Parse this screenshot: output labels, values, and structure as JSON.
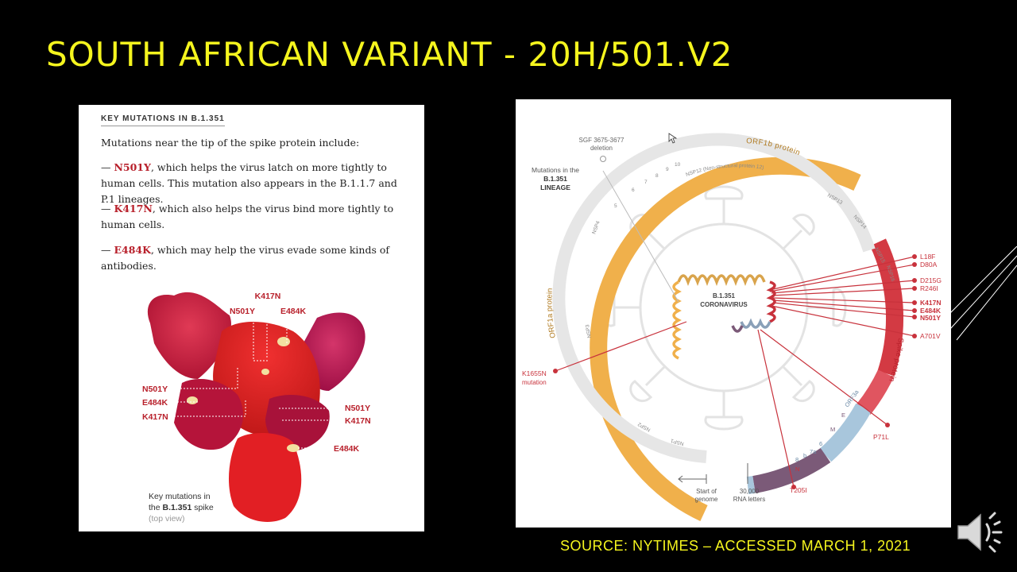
{
  "slide": {
    "title": "SOUTH AFRICAN VARIANT - 20H/501.V2",
    "source": "SOURCE:  NYTIMES – ACCESSED  MARCH 1, 2021"
  },
  "left_panel": {
    "heading": "KEY MUTATIONS IN B.1.351",
    "intro": "Mutations near the tip of the spike protein include:",
    "mutations": [
      {
        "name": "N501Y",
        "text": ", which helps the virus latch on more tightly to human cells. This mutation also appears in the B.1.1.7 and P.1 lineages."
      },
      {
        "name": "K417N",
        "text": ", which also helps the virus bind more tightly to human cells."
      },
      {
        "name": "E484K",
        "text": ", which may help the virus evade some kinds of antibodies."
      }
    ],
    "dash": "— ",
    "spike_labels": {
      "top_k417n": "K417N",
      "top_n501y": "N501Y",
      "top_e484k": "E484K",
      "left_n501y": "N501Y",
      "left_e484k": "E484K",
      "left_k417n": "K417N",
      "right_n501y": "N501Y",
      "right_k417n": "K417N",
      "bottom_e484k": "E484K"
    },
    "caption": {
      "line1": "Key mutations in",
      "line2_prefix": "the ",
      "line2_bold": "B.1.351",
      "line2_suffix": " spike",
      "line3": "(top view)"
    }
  },
  "right_panel": {
    "center_line1": "B.1.351",
    "center_line2": "CORONAVIRUS",
    "orf1b": "ORF1b protein",
    "orf1a": "ORF1a protein",
    "spike": "Spike protein",
    "sgf_line1": "SGF 3675-3677",
    "sgf_line2": "deletion",
    "lineage_line1": "Mutations in the",
    "lineage_line2": "B.1.351",
    "lineage_line3": "LINEAGE",
    "nsp12": "NSP12 (Non-structural protein 12)",
    "nsp13": "NSP13",
    "nsp14": "NSP14",
    "nsp15": "NSP15",
    "nsp16": "NSP16",
    "nsp4": "NSP4",
    "nsp3": "NSP3",
    "nsp2": "NSP2",
    "nsp1": "NSP1",
    "small_nums": [
      "5",
      "6",
      "7",
      "8",
      "9",
      "10"
    ],
    "labels_right": [
      "L18F",
      "D80A",
      "D215G",
      "R246I",
      "K417N",
      "E484K",
      "N501Y",
      "A701V"
    ],
    "k1655n_line1": "K1655N",
    "k1655n_line2": "mutation",
    "p71l": "P71L",
    "t205i": "T205I",
    "orf3a": "ORF3a",
    "e": "E",
    "m": "M",
    "g6": "6",
    "g7a": "7a",
    "g7b": "b",
    "g8": "8",
    "n": "N",
    "start_line1": "Start of",
    "start_line2": "genome",
    "letters_line1": "30,000",
    "letters_line2": "RNA letters"
  },
  "colors": {
    "title": "#f5f51e",
    "orange": "#f0b04b",
    "red": "#c8323c",
    "grey_band": "#e6e6e6"
  }
}
